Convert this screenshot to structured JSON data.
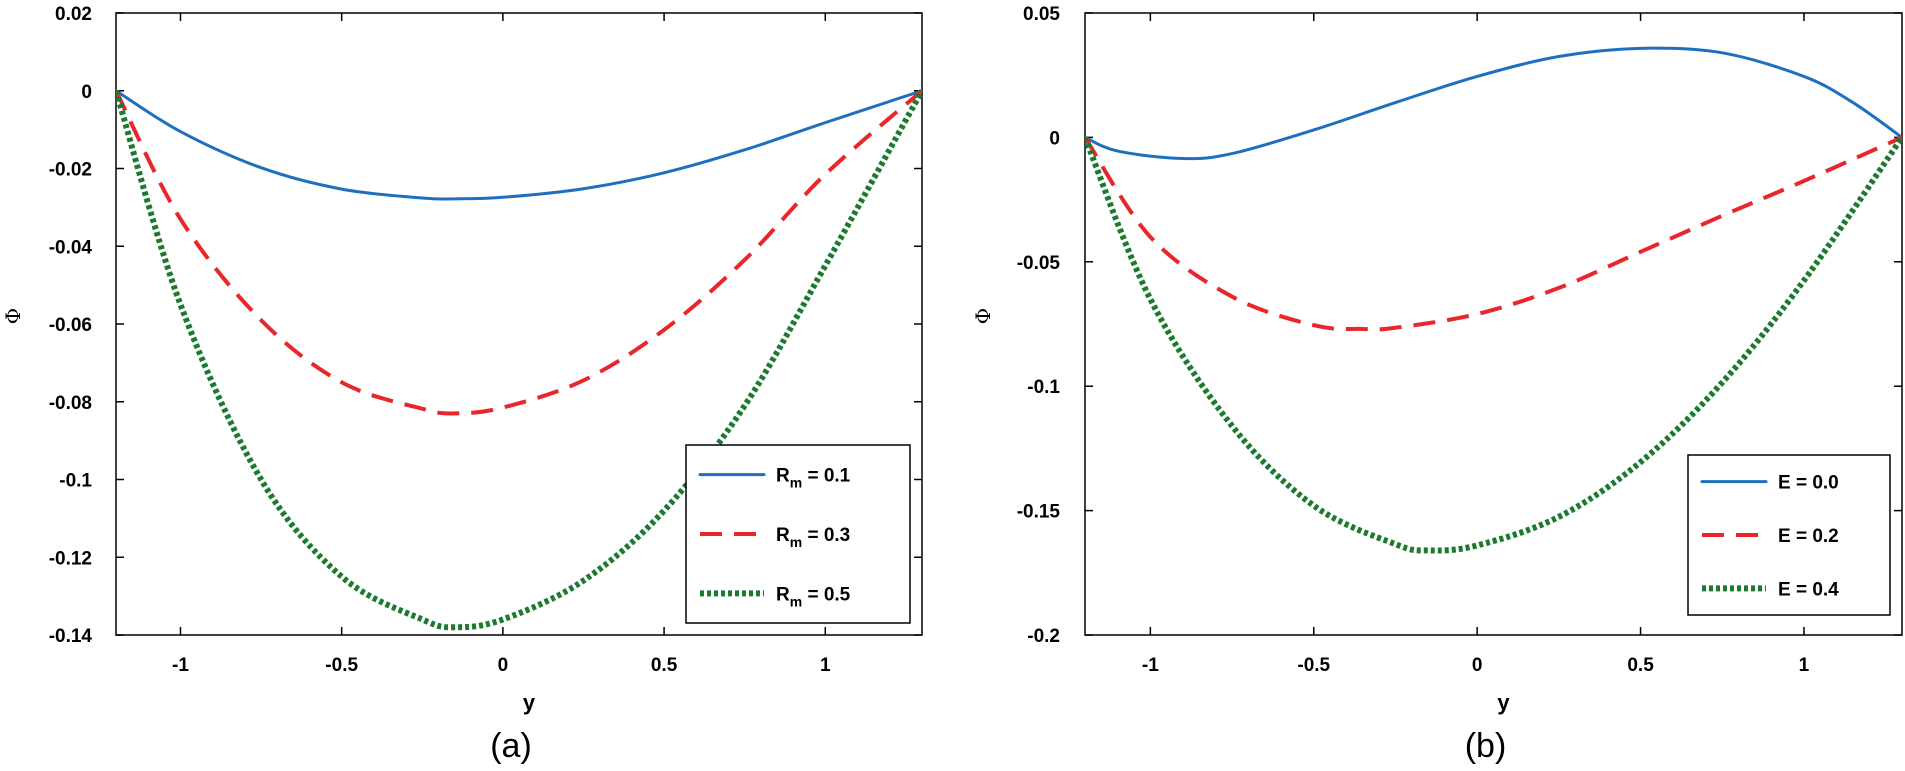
{
  "chart_data": [
    {
      "type": "line",
      "panel_label": "(a)",
      "xlabel": "y",
      "ylabel": "Φ",
      "xlim": [
        -1.2,
        1.3
      ],
      "ylim": [
        -0.14,
        0.02
      ],
      "xticks": [
        -1,
        -0.5,
        0,
        0.5,
        1
      ],
      "xtick_labels": [
        "-1",
        "-0.5",
        "0",
        "0.5",
        "1"
      ],
      "yticks": [
        0.02,
        0,
        -0.02,
        -0.04,
        -0.06,
        -0.08,
        -0.1,
        -0.12,
        -0.14
      ],
      "ytick_labels": [
        "0.02",
        "0",
        "-0.02",
        "-0.04",
        "-0.06",
        "-0.08",
        "-0.1",
        "-0.12",
        "-0.14"
      ],
      "legend_position": "bottom-right",
      "series": [
        {
          "name": "Rm = 0.1",
          "label_main": "R",
          "label_sub": "m",
          "label_rest": " = 0.1",
          "color": "#1f6fbf",
          "style": "solid",
          "x": [
            -1.2,
            -1.0,
            -0.75,
            -0.5,
            -0.25,
            -0.15,
            0.0,
            0.25,
            0.5,
            0.75,
            1.0,
            1.3
          ],
          "y": [
            0.0,
            -0.0105,
            -0.0198,
            -0.0253,
            -0.0276,
            -0.0278,
            -0.0274,
            -0.0252,
            -0.0211,
            -0.0152,
            -0.0082,
            0.0
          ]
        },
        {
          "name": "Rm = 0.3",
          "label_main": "R",
          "label_sub": "m",
          "label_rest": " = 0.3",
          "color": "#e8262b",
          "style": "dashed",
          "x": [
            -1.2,
            -1.0,
            -0.75,
            -0.5,
            -0.25,
            -0.15,
            0.0,
            0.25,
            0.5,
            0.75,
            1.0,
            1.3
          ],
          "y": [
            0.0,
            -0.033,
            -0.059,
            -0.075,
            -0.0818,
            -0.083,
            -0.0815,
            -0.0745,
            -0.0615,
            -0.0435,
            -0.0215,
            0.0
          ]
        },
        {
          "name": "Rm = 0.5",
          "label_main": "R",
          "label_sub": "m",
          "label_rest": " = 0.5",
          "color": "#1a7a2e",
          "style": "dotted",
          "x": [
            -1.2,
            -1.0,
            -0.75,
            -0.5,
            -0.25,
            -0.15,
            0.0,
            0.25,
            0.5,
            0.75,
            1.0,
            1.3
          ],
          "y": [
            0.0,
            -0.055,
            -0.1,
            -0.125,
            -0.136,
            -0.138,
            -0.136,
            -0.126,
            -0.108,
            -0.081,
            -0.045,
            0.0
          ]
        }
      ]
    },
    {
      "type": "line",
      "panel_label": "(b)",
      "xlabel": "y",
      "ylabel": "Φ",
      "xlim": [
        -1.2,
        1.3
      ],
      "ylim": [
        -0.2,
        0.05
      ],
      "xticks": [
        -1,
        -0.5,
        0,
        0.5,
        1
      ],
      "xtick_labels": [
        "-1",
        "-0.5",
        "0",
        "0.5",
        "1"
      ],
      "yticks": [
        0.05,
        0,
        -0.05,
        -0.1,
        -0.15,
        -0.2
      ],
      "ytick_labels": [
        "0.05",
        "0",
        "-0.05",
        "-0.1",
        "-0.15",
        "-0.2"
      ],
      "legend_position": "bottom-right",
      "series": [
        {
          "name": "E = 0.0",
          "label_main": "E = 0.0",
          "label_sub": "",
          "label_rest": "",
          "color": "#1f6fbf",
          "style": "solid",
          "x": [
            -1.2,
            -1.1,
            -0.9,
            -0.75,
            -0.5,
            -0.25,
            0.0,
            0.25,
            0.5,
            0.75,
            1.0,
            1.15,
            1.3
          ],
          "y": [
            0.0,
            -0.0055,
            -0.0085,
            -0.0065,
            0.003,
            0.014,
            0.0245,
            0.0325,
            0.0358,
            0.034,
            0.0245,
            0.014,
            0.0
          ]
        },
        {
          "name": "E = 0.2",
          "label_main": "E = 0.2",
          "label_sub": "",
          "label_rest": "",
          "color": "#e8262b",
          "style": "dashed",
          "x": [
            -1.2,
            -1.0,
            -0.75,
            -0.5,
            -0.35,
            -0.25,
            0.0,
            0.25,
            0.5,
            0.75,
            1.0,
            1.3
          ],
          "y": [
            0.0,
            -0.04,
            -0.064,
            -0.0755,
            -0.077,
            -0.0765,
            -0.071,
            -0.0605,
            -0.046,
            -0.0315,
            -0.0175,
            0.0
          ]
        },
        {
          "name": "E = 0.4",
          "label_main": "E = 0.4",
          "label_sub": "",
          "label_rest": "",
          "color": "#1a7a2e",
          "style": "dotted",
          "x": [
            -1.2,
            -1.0,
            -0.75,
            -0.5,
            -0.25,
            -0.15,
            0.0,
            0.25,
            0.5,
            0.75,
            1.0,
            1.3
          ],
          "y": [
            0.0,
            -0.065,
            -0.116,
            -0.148,
            -0.1635,
            -0.166,
            -0.164,
            -0.1525,
            -0.1305,
            -0.0985,
            -0.0575,
            0.0
          ]
        }
      ]
    }
  ]
}
